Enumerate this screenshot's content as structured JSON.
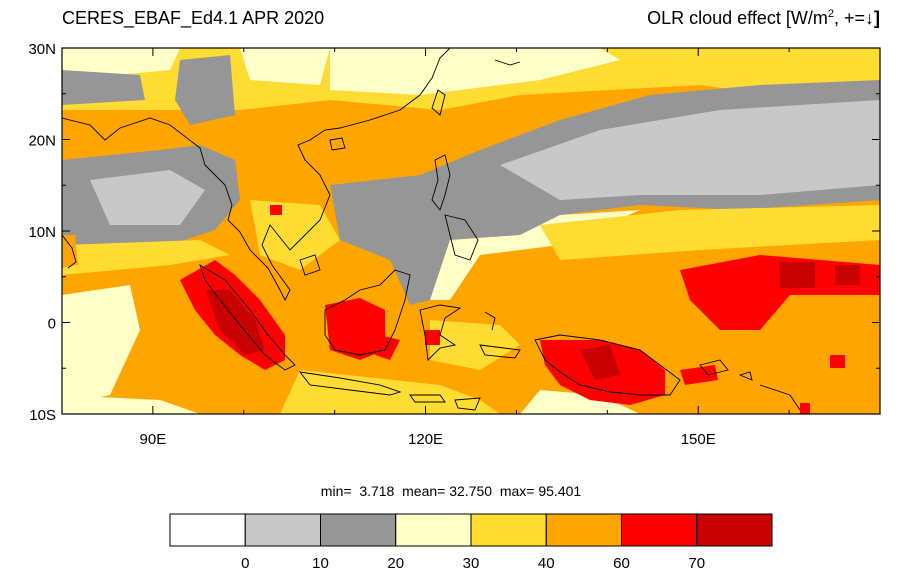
{
  "title_left": "CERES_EBAF_Ed4.1 APR 2020",
  "title_right": {
    "prefix": "OLR cloud effect [W/m",
    "exp": "2",
    "suffix": ", +=",
    "arrow": "↓",
    "close": "]"
  },
  "lat_labels": [
    "30N",
    "20N",
    "10N",
    "0",
    "10S"
  ],
  "lon_labels": [
    "90E",
    "120E",
    "150E"
  ],
  "stats": {
    "min_label": "min=",
    "min": "3.718",
    "mean_label": "mean=",
    "mean": "32.750",
    "max_label": "max=",
    "max": "95.401"
  },
  "colorbar": {
    "colors": [
      "#ffffff",
      "#c8c8c8",
      "#969696",
      "#ffffc8",
      "#ffdc32",
      "#ffa500",
      "#ff0000",
      "#c80000"
    ],
    "labels": [
      "0",
      "10",
      "20",
      "30",
      "40",
      "60",
      "70"
    ]
  },
  "map": {
    "lon_range": [
      80,
      170
    ],
    "lat_range": [
      -10,
      30
    ]
  }
}
